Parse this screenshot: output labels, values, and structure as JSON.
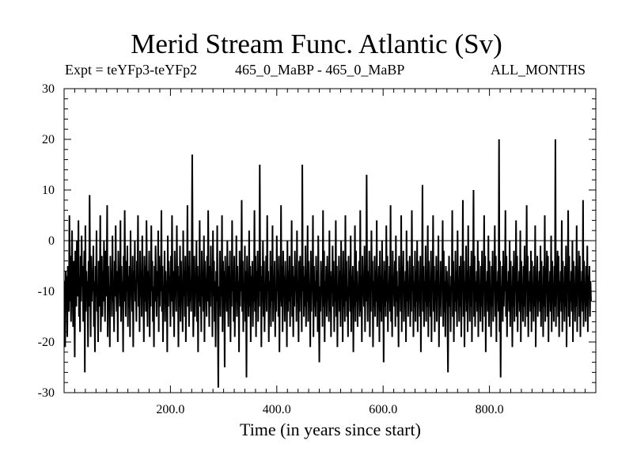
{
  "chart_data": {
    "type": "line",
    "title": "Merid Stream Func. Atlantic (Sv)",
    "subtitle_left": "Expt = teYFp3-teYFp2",
    "subtitle_center": "465_0_MaBP - 465_0_MaBP",
    "subtitle_right": "ALL_MONTHS",
    "xlabel": "Time (in years since start)",
    "ylabel": "",
    "xlim": [
      0,
      1000
    ],
    "ylim": [
      -30,
      30
    ],
    "x_ticks": [
      200,
      400,
      600,
      800
    ],
    "x_tick_labels": [
      "200.0",
      "400.0",
      "600.0",
      "800.0"
    ],
    "y_ticks": [
      -30,
      -20,
      -10,
      0,
      10,
      20,
      30
    ],
    "y_tick_labels": [
      "-30",
      "-20",
      "-10",
      "0",
      "10",
      "20",
      "30"
    ],
    "zero_line": true,
    "grid": false,
    "series": [
      {
        "color": "#000000",
        "x_start": 1,
        "x_step": 1,
        "values": [
          -8,
          -21,
          -6,
          -11,
          -7,
          -19,
          -5,
          -9,
          -14,
          5,
          -12,
          -3,
          -16,
          -6,
          2,
          -10,
          -17,
          -4,
          -9,
          -23,
          -2,
          -8,
          -13,
          0,
          -6,
          -11,
          4,
          -15,
          -7,
          -18,
          -3,
          -12,
          1,
          -9,
          -5,
          -16,
          -10,
          -2,
          -26,
          3,
          -14,
          -6,
          -11,
          -8,
          -21,
          -4,
          -13,
          9,
          -7,
          -19,
          -3,
          -12,
          -6,
          -10,
          -1,
          -17,
          -8,
          -22,
          -5,
          -11,
          2,
          -14,
          -9,
          -20,
          -4,
          -7,
          -13,
          5,
          -18,
          -10,
          -3,
          -15,
          -6,
          -12,
          0,
          -8,
          -16,
          -2,
          -11,
          -7,
          7,
          -19,
          -5,
          -13,
          -9,
          -21,
          -3,
          -10,
          -6,
          -15,
          1,
          -12,
          -8,
          -18,
          -4,
          -11,
          3,
          -9,
          -14,
          -6,
          -20,
          -2,
          -10,
          -7,
          -13,
          4,
          -16,
          -5,
          -11,
          -8,
          -22,
          -3,
          -12,
          6,
          -9,
          -15,
          -4,
          -10,
          -1,
          -17,
          -7,
          -13,
          -5,
          -19,
          2,
          -11,
          -8,
          -14,
          -3,
          -21,
          -6,
          -10,
          0,
          -12,
          -9,
          -16,
          -4,
          -8,
          5,
          -13,
          -7,
          -18,
          -2,
          -11,
          -6,
          -15,
          1,
          -10,
          -9,
          -20,
          -3,
          -12,
          -5,
          -14,
          4,
          -8,
          -17,
          -6,
          -11,
          -2,
          -19,
          -7,
          -13,
          3,
          -10,
          -4,
          -16,
          -9,
          -21,
          -5,
          -12,
          -1,
          -8,
          -15,
          -6,
          -11,
          2,
          -18,
          -3,
          -13,
          -7,
          -10,
          6,
          -14,
          -5,
          -20,
          -9,
          -12,
          -2,
          -16,
          -6,
          -11,
          -8,
          -22,
          1,
          -13,
          -4,
          -10,
          -7,
          -17,
          -3,
          -12,
          5,
          -9,
          -15,
          -6,
          -19,
          -2,
          -11,
          -8,
          -14,
          3,
          -10,
          -5,
          -21,
          -7,
          -13,
          -1,
          -16,
          -4,
          -12,
          -9,
          -18,
          2,
          -11,
          -6,
          -15,
          -3,
          -20,
          -8,
          -10,
          7,
          -13,
          -5,
          -17,
          -2,
          -12,
          -9,
          -14,
          -4,
          17,
          -6,
          -19,
          -11,
          -3,
          -15,
          -8,
          -10,
          0,
          -16,
          -5,
          -22,
          -7,
          -12,
          4,
          -13,
          -9,
          -18,
          -2,
          -11,
          -6,
          -14,
          1,
          -20,
          -4,
          -10,
          -8,
          -15,
          -3,
          -12,
          6,
          -9,
          -17,
          -5,
          -13,
          -1,
          -10,
          -7,
          -19,
          2,
          -11,
          -4,
          -16,
          -8,
          -21,
          -6,
          -12,
          3,
          -14,
          -29,
          -9,
          -13,
          -2,
          -15,
          -7,
          -11,
          5,
          -18,
          -4,
          -10,
          -6,
          -25,
          -3,
          -12,
          -8,
          -14,
          0,
          -9,
          -17,
          -5,
          -11,
          -2,
          -20,
          -7,
          -13,
          4,
          -10,
          -6,
          -16,
          -3,
          -19,
          -9,
          -12,
          1,
          -15,
          -5,
          -11,
          -8,
          -22,
          -2,
          -13,
          -7,
          -10,
          8,
          -14,
          -4,
          -18,
          -9,
          -12,
          -1,
          -16,
          -6,
          -27,
          -3,
          -11,
          -8,
          -15,
          2,
          -13,
          -5,
          -20,
          -7,
          -10,
          -4,
          -17,
          -9,
          -12,
          6,
          -14,
          -3,
          -19,
          -6,
          -11,
          -2,
          -16,
          -8,
          -13,
          15,
          -10,
          -5,
          -21,
          -7,
          -12,
          0,
          -15,
          -4,
          -18,
          -9,
          -11,
          -3,
          -14,
          5,
          -10,
          -6,
          -20,
          -8,
          -13,
          -2,
          -17,
          -5,
          -12,
          3,
          -16,
          -7,
          -11,
          -4,
          -19,
          -9,
          -14,
          1,
          -10,
          -6,
          -15,
          -3,
          -22,
          -8,
          -12,
          7,
          -13,
          -5,
          -18,
          -2,
          -11,
          -7,
          -16,
          -4,
          -10,
          -9,
          -21,
          0,
          -14,
          -6,
          -12,
          -3,
          -17,
          -8,
          -11,
          4,
          -15,
          -5,
          -19,
          -7,
          -13,
          -2,
          -10,
          -6,
          -16,
          2,
          -12,
          -9,
          -20,
          -4,
          -14,
          -3,
          -11,
          -8,
          -18,
          15,
          -10,
          -5,
          -15,
          -7,
          -13,
          -1,
          -17,
          -6,
          -12,
          3,
          -16,
          -4,
          -11,
          -9,
          -21,
          -2,
          -14,
          -7,
          -10,
          5,
          -19,
          -5,
          -13,
          -8,
          -15,
          -3,
          -12,
          -6,
          -18,
          1,
          -11,
          -24,
          -9,
          -14,
          -4,
          -10,
          -7,
          -17,
          6,
          -13,
          -2,
          -20,
          -8,
          -12,
          -5,
          -15,
          -3,
          -11,
          -9,
          -16,
          2,
          -14,
          -6,
          -19,
          -7,
          -10,
          -1,
          -13,
          -4,
          -18,
          -8,
          -12,
          4,
          -15,
          -5,
          -21,
          -9,
          -11,
          -3,
          -14,
          -6,
          -17,
          0,
          -10,
          -7,
          -20,
          -2,
          -13,
          -8,
          -16,
          5,
          -12,
          -4,
          -15,
          -9,
          -19,
          -3,
          -11,
          -6,
          -14,
          1,
          -18,
          -7,
          -10,
          -5,
          -22,
          -8,
          -13,
          3,
          -16,
          -2,
          -12,
          -6,
          -17,
          -9,
          -11,
          -4,
          -15,
          6,
          -14,
          -7,
          -20,
          -3,
          -10,
          -8,
          -13,
          -1,
          -18,
          -5,
          -12,
          13,
          -9,
          -16,
          -6,
          -11,
          -2,
          -19,
          -7,
          -14,
          2,
          -10,
          -4,
          -21,
          -8,
          -13,
          -3,
          -15,
          -6,
          -12,
          4,
          -17,
          -9,
          -11,
          -5,
          -20,
          -2,
          -14,
          -7,
          -16,
          0,
          -10,
          -8,
          -24,
          -4,
          -13,
          -6,
          -15,
          3,
          -12,
          -3,
          -18,
          -9,
          -11,
          -5,
          -14,
          7,
          -16,
          -7,
          -19,
          -2,
          -10,
          -8,
          -13,
          -4,
          -17,
          1,
          -12,
          -6,
          -15,
          -9,
          -21,
          -3,
          -11,
          -7,
          -14,
          5,
          -18,
          -5,
          -10,
          -2,
          -16,
          -8,
          -13,
          -6,
          -20,
          2,
          -12,
          -4,
          -15,
          -9,
          -11,
          -3,
          -17,
          -7,
          -14,
          6,
          -10,
          -5,
          -19,
          -8,
          -13,
          -2,
          -16,
          -6,
          -12,
          0,
          -18,
          -4,
          -11,
          -9,
          -15,
          -3,
          -22,
          -7,
          -10,
          11,
          -14,
          -5,
          -17,
          -8,
          -12,
          -1,
          -16,
          -6,
          -13,
          3,
          -19,
          -4,
          -11,
          -9,
          -15,
          -2,
          -20,
          -7,
          -10,
          5,
          -14,
          -5,
          -18,
          -8,
          -12,
          -3,
          -16,
          -6,
          -11,
          1,
          -21,
          -9,
          -13,
          -4,
          -15,
          -7,
          -10,
          4,
          -17,
          -2,
          -14,
          -8,
          -19,
          -5,
          -12,
          -6,
          -16,
          -26,
          -11,
          -3,
          -13,
          -9,
          -18,
          -7,
          -10,
          6,
          -15,
          -4,
          -20,
          -8,
          -12,
          -2,
          -14,
          -6,
          -17,
          2,
          -11,
          -9,
          -16,
          -5,
          -13,
          -3,
          -19,
          -7,
          -10,
          8,
          -15,
          -4,
          -21,
          -8,
          -12,
          -1,
          -14,
          -6,
          -18,
          3,
          -11,
          -9,
          -16,
          -5,
          -13,
          -2,
          -20,
          -7,
          -10,
          10,
          -15,
          -3,
          -17,
          -8,
          -12,
          -6,
          -14,
          0,
          -19,
          -4,
          -11,
          -9,
          -16,
          -5,
          -13,
          -2,
          -18,
          -7,
          -10,
          5,
          -15,
          -3,
          -22,
          -8,
          -12,
          -6,
          -14,
          1,
          -17,
          -4,
          -11,
          -9,
          -19,
          -5,
          -13,
          -2,
          -16,
          -7,
          -10,
          3,
          -15,
          -3,
          -20,
          -8,
          -12,
          -6,
          -14,
          20,
          -18,
          -4,
          -27,
          -9,
          -11,
          -5,
          -16,
          -2,
          -13,
          -7,
          -10,
          6,
          -15,
          -3,
          -19,
          -8,
          -12,
          -6,
          -14,
          0,
          -17,
          -4,
          -11,
          -9,
          -21,
          -5,
          -13,
          -2,
          -16,
          -7,
          -10,
          4,
          -15,
          -3,
          -18,
          -8,
          -12,
          -6,
          -14,
          2,
          -20,
          -4,
          -11,
          -9,
          -16,
          -5,
          -13,
          -1,
          -17,
          -7,
          -10,
          7,
          -15,
          -3,
          -19,
          -8,
          -12,
          -6,
          -14,
          -2,
          -18,
          -4,
          -11,
          -9,
          -16,
          -5,
          -13,
          3,
          -21,
          -7,
          -10,
          -3,
          -15,
          -8,
          -12,
          -6,
          -14,
          -1,
          -17,
          -4,
          -11,
          -9,
          -19,
          -5,
          -13,
          5,
          -16,
          -7,
          -10,
          -2,
          -15,
          -3,
          -20,
          -8,
          -12,
          -6,
          -14,
          1,
          -18,
          -4,
          -11,
          -9,
          -16,
          -5,
          -13,
          20,
          -17,
          -7,
          -10,
          -2,
          -15,
          -3,
          -19,
          -8,
          -12,
          -6,
          -14,
          4,
          -18,
          -4,
          -11,
          -9,
          -16,
          -5,
          -13,
          -1,
          -21,
          -7,
          -10,
          6,
          -15,
          -3,
          -17,
          -8,
          -12,
          -6,
          -14,
          0,
          -20,
          -4,
          -11,
          -9,
          -16,
          -5,
          -13,
          3,
          -18,
          -7,
          -10,
          -2,
          -15,
          -3,
          -19,
          -8,
          -12,
          -6,
          -14,
          8,
          -17,
          -4,
          -11,
          -9,
          -16,
          -5,
          -13,
          -1,
          -18,
          -7,
          -10,
          -5,
          -15,
          -8,
          -12
        ]
      }
    ]
  }
}
